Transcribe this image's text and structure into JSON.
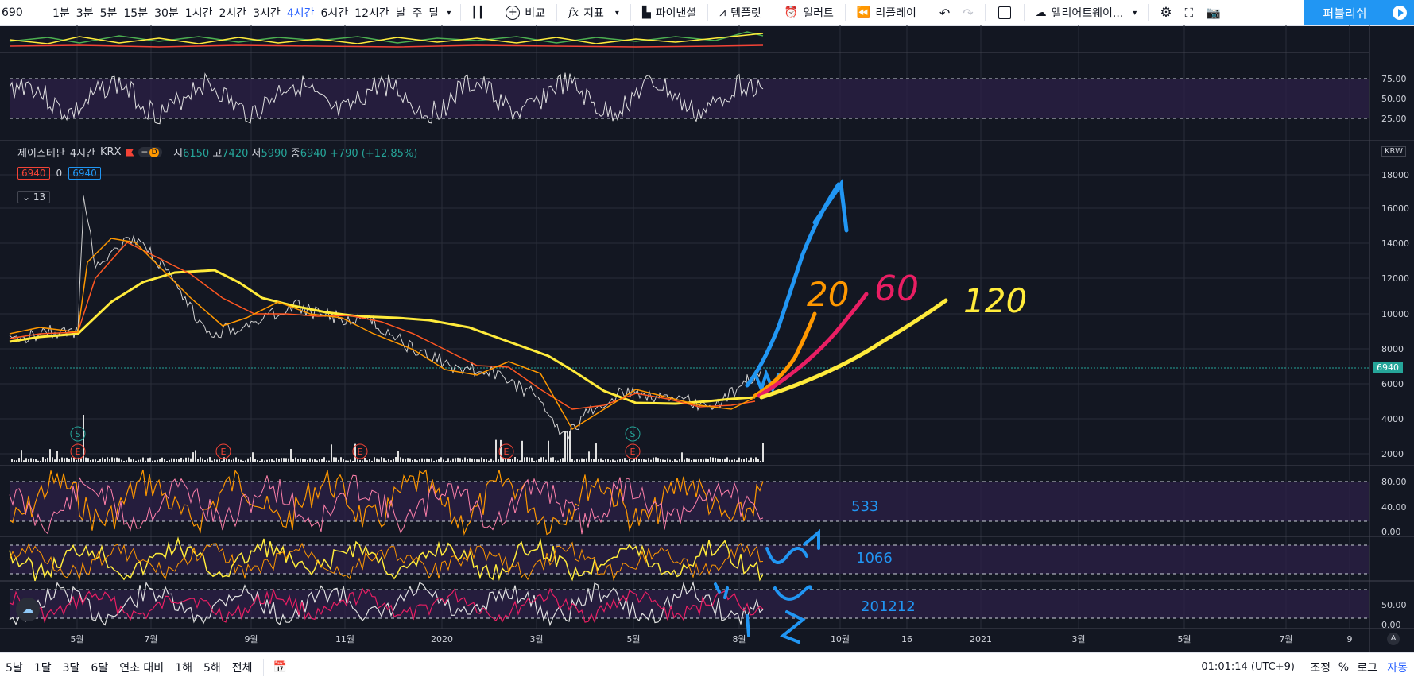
{
  "toolbar": {
    "symbol": "690",
    "timeframes": [
      "1분",
      "3분",
      "5분",
      "15분",
      "30분",
      "1시간",
      "2시간",
      "3시간",
      "4시간",
      "6시간",
      "12시간",
      "날",
      "주",
      "달"
    ],
    "active_timeframe": "4시간",
    "compare_label": "비교",
    "indicator_label": "지표",
    "financials_label": "파이낸셜",
    "template_label": "템플릿",
    "alert_label": "얼러트",
    "replay_label": "리플레이",
    "layout_label": "엘리어트웨이...",
    "publish_label": "퍼블리쉬"
  },
  "legend": {
    "name": "제이스테판",
    "interval": "4시간",
    "exchange": "KRX",
    "badge": "D",
    "open_label": "시",
    "open": "6150",
    "high_label": "고",
    "high": "7420",
    "low_label": "저",
    "low": "5990",
    "close_label": "종",
    "close": "6940",
    "change": "+790 (+12.85%)",
    "bid": "6940",
    "spread": "0",
    "ask": "6940",
    "collapse_count": "13"
  },
  "price_axis": {
    "currency": "KRW",
    "ticks": [
      "18000",
      "16000",
      "14000",
      "12000",
      "10000",
      "8000",
      "6000",
      "4000",
      "2000"
    ],
    "last_price": "6940"
  },
  "rsi_axis": {
    "ticks": [
      "75.00",
      "50.00",
      "25.00"
    ]
  },
  "osc_axes": {
    "panel1": [
      "80.00",
      "40.00",
      "0.00"
    ],
    "panel3": [
      "50.00",
      "0.00"
    ]
  },
  "time_axis": [
    "5월",
    "7월",
    "9월",
    "11월",
    "2020",
    "3월",
    "5월",
    "8월",
    "10월",
    "16",
    "2021",
    "3월",
    "5월",
    "7월",
    "9"
  ],
  "events": {
    "s_label": "S",
    "e_label": "E"
  },
  "annotations": {
    "ma20": "20",
    "ma60": "60",
    "ma120": "120",
    "n1": "533",
    "n2": "1066",
    "n3": "201212"
  },
  "bottombar": {
    "ranges": [
      "5날",
      "1달",
      "3달",
      "6달",
      "연초 대비",
      "1해",
      "5해",
      "전체"
    ],
    "clock": "01:01:14 (UTC+9)",
    "adjust": "조정",
    "percent": "%",
    "log": "로그",
    "auto": "자동"
  },
  "colors": {
    "bg": "#131722",
    "ma20": "#ff9800",
    "ma60": "#f44336",
    "ma120": "#ffeb3b",
    "accent": "#2196f3",
    "pink": "#e91e63",
    "band": "#3a2a5e"
  }
}
